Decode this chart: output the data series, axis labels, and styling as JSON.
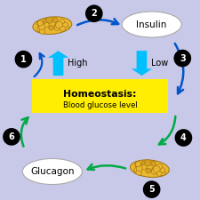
{
  "bg_color": "#c8c8e8",
  "title1": "Homeostasis:",
  "title2": "Blood glucose level",
  "title_bg": "#ffee00",
  "insulin_label": "Insulin",
  "glucagon_label": "Glucagon",
  "high_label": "High",
  "low_label": "Low",
  "circle_numbers": [
    "1",
    "2",
    "3",
    "4",
    "5",
    "6"
  ],
  "cyan_color": "#00c0ff",
  "dark_blue_color": "#0055cc",
  "green_color": "#00aa44",
  "pancreas_light": "#e8b830",
  "pancreas_dark": "#a07010",
  "pancreas_mid": "#d4a020"
}
